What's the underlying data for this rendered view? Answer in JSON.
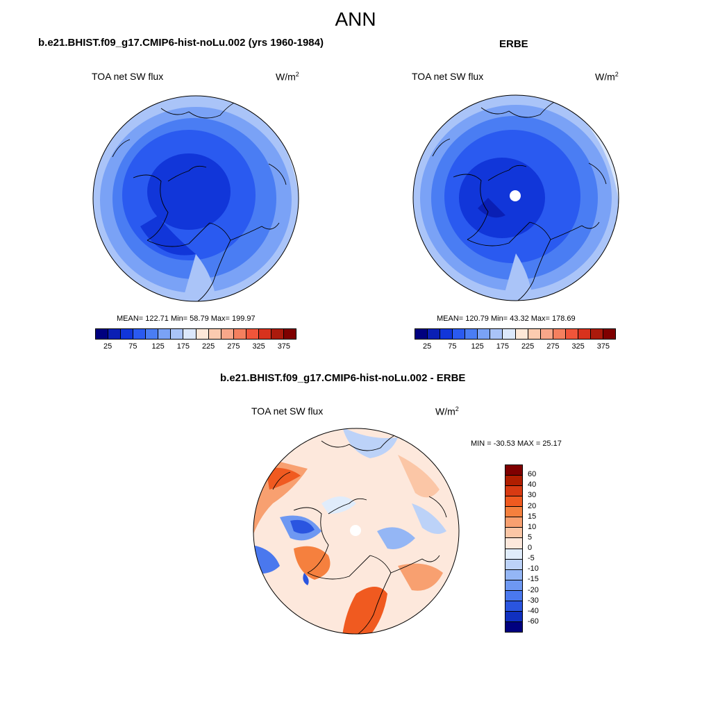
{
  "figure": {
    "title": "ANN"
  },
  "panels": [
    {
      "case_title": "b.e21.BHIST.f09_g17.CMIP6-hist-noLu.002 (yrs 1960-1984)",
      "variable": "TOA net SW flux",
      "units_base": "W/m",
      "units_sup": "2",
      "stats": "MEAN= 122.71  Min=  58.79  Max= 199.97",
      "colorbar_ticks": [
        "25",
        "75",
        "125",
        "175",
        "225",
        "275",
        "325",
        "375"
      ],
      "map": "Arctic polar stereographic projection"
    },
    {
      "case_title": "ERBE",
      "variable": "TOA net SW flux",
      "units_base": "W/m",
      "units_sup": "2",
      "stats": "MEAN= 120.79  Min=  43.32  Max= 178.69",
      "colorbar_ticks": [
        "25",
        "75",
        "125",
        "175",
        "225",
        "275",
        "325",
        "375"
      ],
      "map": "Arctic polar stereographic projection"
    },
    {
      "case_title": "b.e21.BHIST.f09_g17.CMIP6-hist-noLu.002 - ERBE",
      "variable": "TOA net SW flux",
      "units_base": "W/m",
      "units_sup": "2",
      "stats": "MIN = -30.53 MAX =  25.17",
      "colorbar_ticks": [
        "60",
        "40",
        "30",
        "20",
        "15",
        "10",
        "5",
        "0",
        "-5",
        "-10",
        "-15",
        "-20",
        "-30",
        "-40",
        "-60"
      ],
      "map": "Arctic polar stereographic projection"
    }
  ],
  "colors": {
    "abs_scale": [
      "#00007f",
      "#0a1fb4",
      "#1136d9",
      "#2a5af0",
      "#4a7df3",
      "#7aa2f6",
      "#aac4f8",
      "#dce8fb",
      "#fde8d8",
      "#fbcbb0",
      "#f8a78a",
      "#f4805f",
      "#f0553a",
      "#d8321d",
      "#ab1a0c",
      "#7f0000"
    ],
    "diff_scale": [
      "#7f0000",
      "#b01e00",
      "#d83a12",
      "#f05a20",
      "#f5803e",
      "#f8a070",
      "#fbc6a6",
      "#fde8dc",
      "#e0ecfb",
      "#bcd2f8",
      "#94b6f5",
      "#6e98f2",
      "#4a78ee",
      "#2a55e0",
      "#1030c0",
      "#00007f"
    ]
  }
}
